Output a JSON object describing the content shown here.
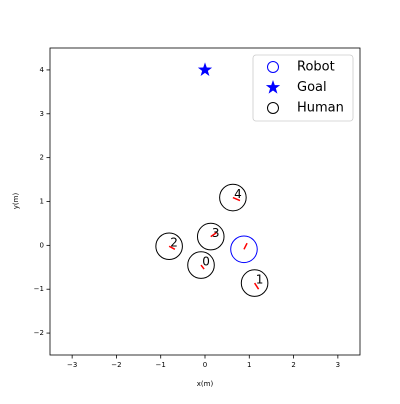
{
  "chart_data": {
    "type": "scatter",
    "xlabel": "x(m)",
    "ylabel": "y(m)",
    "xlim": [
      -3.5,
      3.5
    ],
    "ylim": [
      -2.5,
      4.5
    ],
    "xticks": [
      {
        "value": -3,
        "label": "−3"
      },
      {
        "value": -2,
        "label": "−2"
      },
      {
        "value": -1,
        "label": "−1"
      },
      0,
      1,
      2,
      3
    ],
    "yticks": [
      {
        "value": -2,
        "label": "−2"
      },
      {
        "value": -1,
        "label": "−1"
      },
      0,
      1,
      2,
      3,
      4
    ],
    "legend": "upper right",
    "arrow_color": "red",
    "series": [
      {
        "name": "Robot",
        "marker": "circle",
        "color": "blue",
        "radius": 0.3,
        "x": [
          0.88
        ],
        "y": [
          -0.09
        ],
        "vx": [
          0.07
        ],
        "vy": [
          0.14
        ]
      },
      {
        "name": "Goal",
        "marker": "star",
        "color": "blue",
        "x": [
          0
        ],
        "y": [
          4
        ]
      },
      {
        "name": "Human",
        "marker": "circle",
        "color": "black",
        "radius": 0.3,
        "x": [
          -0.09,
          1.12,
          -0.81,
          0.13,
          0.63
        ],
        "y": [
          -0.45,
          -0.86,
          -0.02,
          0.2,
          1.09
        ],
        "vx": [
          0.07,
          0.09,
          0.13,
          0.13,
          0.16
        ],
        "vy": [
          -0.09,
          -0.14,
          -0.07,
          0.09,
          -0.07
        ],
        "labels": [
          "0",
          "1",
          "2",
          "3",
          "4"
        ]
      }
    ]
  }
}
